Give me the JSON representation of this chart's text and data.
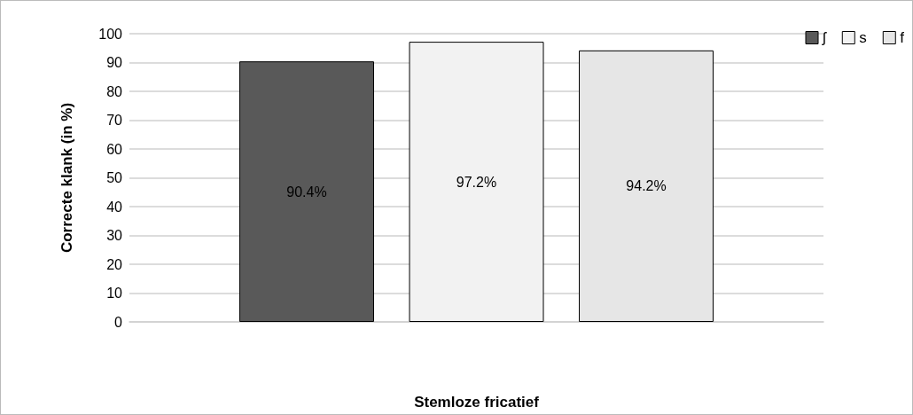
{
  "chart_data": {
    "type": "bar",
    "xlabel": "Stemloze fricatief",
    "ylabel": "Correcte klank (in %)",
    "categories": [
      null
    ],
    "series": [
      {
        "name": "ʃ",
        "color": "#595959",
        "values": [
          90.4
        ],
        "value_labels": [
          "90.4%"
        ]
      },
      {
        "name": "s",
        "color": "#f2f2f2",
        "values": [
          97.2
        ],
        "value_labels": [
          "97.2%"
        ]
      },
      {
        "name": "f",
        "color": "#e6e6e6",
        "values": [
          94.2
        ],
        "value_labels": [
          "94.2%"
        ]
      }
    ],
    "ylim": [
      0,
      100
    ],
    "yticks": [
      0,
      10,
      20,
      30,
      40,
      50,
      60,
      70,
      80,
      90,
      100
    ],
    "grid": "y",
    "legend": "top right"
  }
}
